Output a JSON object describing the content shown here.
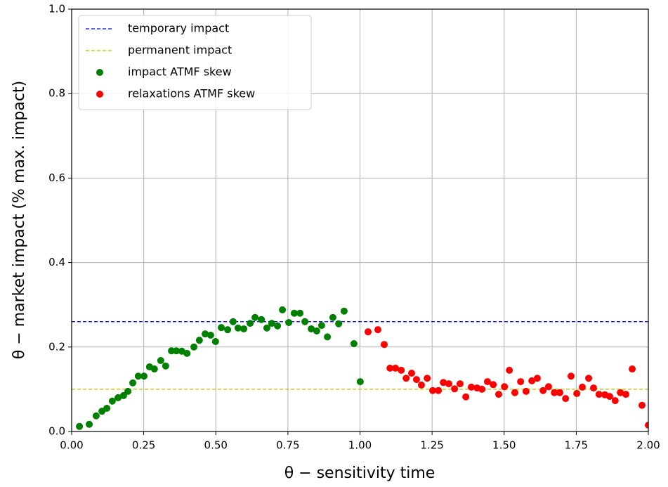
{
  "chart_data": {
    "type": "scatter",
    "xlabel": "θ − sensitivity time",
    "ylabel": "θ − market impact (% max. impact)",
    "xlim": [
      0,
      2
    ],
    "ylim": [
      0,
      1
    ],
    "xticks": [
      {
        "value": 0,
        "label": "0.00"
      },
      {
        "value": 0.25,
        "label": "0.25"
      },
      {
        "value": 0.5,
        "label": "0.50"
      },
      {
        "value": 0.75,
        "label": "0.75"
      },
      {
        "value": 1,
        "label": "1.00"
      },
      {
        "value": 1.25,
        "label": "1.25"
      },
      {
        "value": 1.5,
        "label": "1.50"
      },
      {
        "value": 1.75,
        "label": "1.75"
      },
      {
        "value": 2,
        "label": "2.00"
      }
    ],
    "yticks": [
      {
        "value": 0,
        "label": "0.0"
      },
      {
        "value": 0.2,
        "label": "0.2"
      },
      {
        "value": 0.4,
        "label": "0.4"
      },
      {
        "value": 0.6,
        "label": "0.6"
      },
      {
        "value": 0.8,
        "label": "0.8"
      },
      {
        "value": 1,
        "label": "1.0"
      }
    ],
    "grid": true,
    "legend": "upper left",
    "series": [
      {
        "name": "temporary impact",
        "type": "hline",
        "color": "#0000ff",
        "y": 0.26
      },
      {
        "name": "permanent impact",
        "type": "hline",
        "color": "#bfbf00",
        "y": 0.1
      },
      {
        "name": "impact ATMF skew",
        "type": "scatter",
        "color": "#008000",
        "x": [
          0.027,
          0.061,
          0.085,
          0.105,
          0.122,
          0.141,
          0.161,
          0.18,
          0.195,
          0.212,
          0.231,
          0.251,
          0.27,
          0.287,
          0.309,
          0.326,
          0.346,
          0.363,
          0.382,
          0.4,
          0.424,
          0.443,
          0.463,
          0.482,
          0.499,
          0.519,
          0.541,
          0.56,
          0.577,
          0.597,
          0.619,
          0.636,
          0.658,
          0.677,
          0.694,
          0.714,
          0.731,
          0.753,
          0.772,
          0.792,
          0.809,
          0.831,
          0.85,
          0.867,
          0.887,
          0.906,
          0.926,
          0.945,
          0.979,
          1.001
        ],
        "values": [
          0.012,
          0.017,
          0.037,
          0.048,
          0.055,
          0.072,
          0.08,
          0.085,
          0.095,
          0.115,
          0.131,
          0.131,
          0.153,
          0.148,
          0.168,
          0.155,
          0.191,
          0.191,
          0.19,
          0.185,
          0.2,
          0.216,
          0.231,
          0.228,
          0.213,
          0.246,
          0.241,
          0.26,
          0.245,
          0.243,
          0.256,
          0.27,
          0.265,
          0.245,
          0.256,
          0.25,
          0.288,
          0.258,
          0.28,
          0.28,
          0.26,
          0.243,
          0.238,
          0.251,
          0.224,
          0.27,
          0.255,
          0.285,
          0.208,
          0.118
        ]
      },
      {
        "name": "relaxations ATMF skew",
        "type": "scatter",
        "color": "#ff0000",
        "x": [
          1.028,
          1.062,
          1.084,
          1.104,
          1.123,
          1.143,
          1.16,
          1.179,
          1.196,
          1.213,
          1.233,
          1.252,
          1.272,
          1.289,
          1.308,
          1.328,
          1.347,
          1.367,
          1.386,
          1.406,
          1.423,
          1.442,
          1.462,
          1.481,
          1.501,
          1.518,
          1.537,
          1.557,
          1.576,
          1.596,
          1.615,
          1.635,
          1.654,
          1.674,
          1.693,
          1.713,
          1.732,
          1.752,
          1.771,
          1.793,
          1.81,
          1.829,
          1.849,
          1.866,
          1.885,
          1.903,
          1.922,
          1.944,
          1.978,
          2.0
        ],
        "values": [
          0.236,
          0.241,
          0.206,
          0.15,
          0.15,
          0.145,
          0.126,
          0.138,
          0.123,
          0.11,
          0.126,
          0.097,
          0.097,
          0.116,
          0.113,
          0.101,
          0.113,
          0.082,
          0.105,
          0.103,
          0.1,
          0.118,
          0.111,
          0.088,
          0.106,
          0.145,
          0.092,
          0.118,
          0.095,
          0.12,
          0.126,
          0.097,
          0.106,
          0.092,
          0.092,
          0.078,
          0.131,
          0.09,
          0.105,
          0.126,
          0.103,
          0.088,
          0.087,
          0.083,
          0.073,
          0.092,
          0.088,
          0.148,
          0.062,
          0.015
        ]
      }
    ]
  }
}
